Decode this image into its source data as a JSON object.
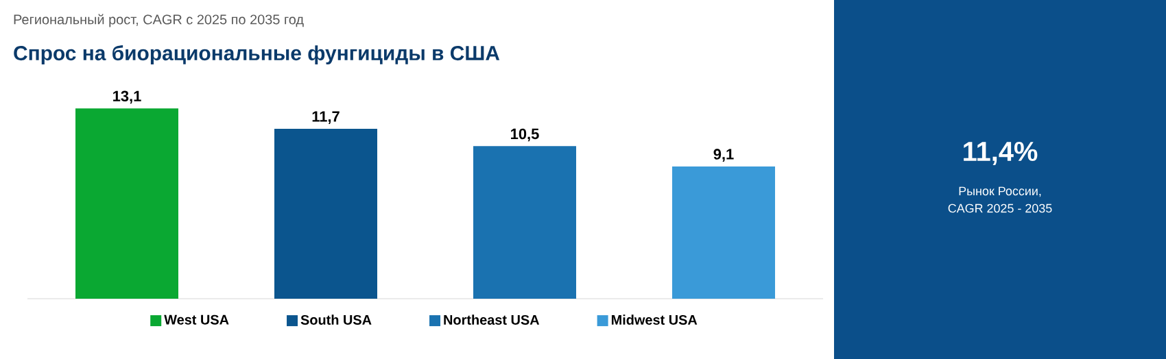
{
  "chart_data": {
    "type": "bar",
    "title": "Спрос на биорациональные фунгициды в США",
    "subtitle": "Региональный рост, CAGR с 2025 по 2035 год",
    "categories": [
      null,
      null,
      null,
      null
    ],
    "stacked": true,
    "series": [
      {
        "name": "West USA",
        "color": "#0aa832",
        "values": [
          13.1,
          null,
          null,
          null
        ],
        "value_labels": [
          "13,1",
          null,
          null,
          null
        ]
      },
      {
        "name": "South USA",
        "color": "#0b558e",
        "values": [
          null,
          11.7,
          null,
          null
        ],
        "value_labels": [
          null,
          "11,7",
          null,
          null
        ]
      },
      {
        "name": "Northeast USA",
        "color": "#1a72b0",
        "values": [
          null,
          null,
          10.5,
          null
        ],
        "value_labels": [
          null,
          null,
          "10,5",
          null
        ]
      },
      {
        "name": "Midwest USA",
        "color": "#3a9ad8",
        "values": [
          null,
          null,
          null,
          9.1
        ],
        "value_labels": [
          null,
          null,
          null,
          "9,1"
        ]
      }
    ],
    "legend": "bottom",
    "annotations": [
      "11,4%",
      "Рынок России,",
      "CAGR 2025 - 2035"
    ]
  }
}
